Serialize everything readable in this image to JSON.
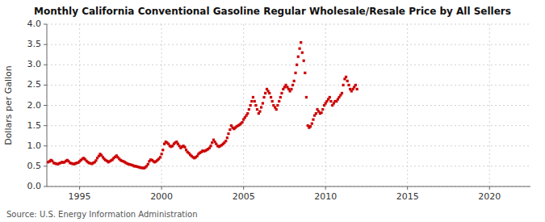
{
  "chart_data": {
    "type": "scatter",
    "title": "Monthly California Conventional Gasoline Regular Wholesale/Resale Price by All Sellers",
    "y_label": "Dollars per Gallon",
    "annotations": [
      "Source: U.S. Energy Information Administration"
    ],
    "color": "#CC0000",
    "marker": "square",
    "grid": true,
    "xlim": [
      1993.0,
      2022.5
    ],
    "ylim": [
      0.0,
      4.0
    ],
    "xticks": [
      1995,
      2000,
      2005,
      2010,
      2015,
      2020
    ],
    "yticks": [
      {
        "value": 0.0,
        "label": "0.0"
      },
      0.5,
      {
        "value": 1.0,
        "label": "1.0"
      },
      1.5,
      {
        "value": 2.0,
        "label": "2.0"
      },
      2.5,
      {
        "value": 3.0,
        "label": "3.0"
      },
      3.5,
      {
        "value": 4.0,
        "label": "4.0"
      }
    ],
    "x": [
      1993.08,
      1993.17,
      1993.25,
      1993.33,
      1993.42,
      1993.5,
      1993.58,
      1993.67,
      1993.75,
      1993.83,
      1993.92,
      1994.0,
      1994.08,
      1994.17,
      1994.25,
      1994.33,
      1994.42,
      1994.5,
      1994.58,
      1994.67,
      1994.75,
      1994.83,
      1994.92,
      1995.0,
      1995.08,
      1995.17,
      1995.25,
      1995.33,
      1995.42,
      1995.5,
      1995.58,
      1995.67,
      1995.75,
      1995.83,
      1995.92,
      1996.0,
      1996.08,
      1996.17,
      1996.25,
      1996.33,
      1996.42,
      1996.5,
      1996.58,
      1996.67,
      1996.75,
      1996.83,
      1996.92,
      1997.0,
      1997.08,
      1997.17,
      1997.25,
      1997.33,
      1997.42,
      1997.5,
      1997.58,
      1997.67,
      1997.75,
      1997.83,
      1997.92,
      1998.0,
      1998.08,
      1998.17,
      1998.25,
      1998.33,
      1998.42,
      1998.5,
      1998.58,
      1998.67,
      1998.75,
      1998.83,
      1998.92,
      1999.0,
      1999.08,
      1999.17,
      1999.25,
      1999.33,
      1999.42,
      1999.5,
      1999.58,
      1999.67,
      1999.75,
      1999.83,
      1999.92,
      2000.0,
      2000.08,
      2000.17,
      2000.25,
      2000.33,
      2000.42,
      2000.5,
      2000.58,
      2000.67,
      2000.75,
      2000.83,
      2000.92,
      2001.0,
      2001.08,
      2001.17,
      2001.25,
      2001.33,
      2001.42,
      2001.5,
      2001.58,
      2001.67,
      2001.75,
      2001.83,
      2001.92,
      2002.0,
      2002.08,
      2002.17,
      2002.25,
      2002.33,
      2002.42,
      2002.5,
      2002.58,
      2002.67,
      2002.75,
      2002.83,
      2002.92,
      2003.0,
      2003.08,
      2003.17,
      2003.25,
      2003.33,
      2003.42,
      2003.5,
      2003.58,
      2003.67,
      2003.75,
      2003.83,
      2003.92,
      2004.0,
      2004.08,
      2004.17,
      2004.25,
      2004.33,
      2004.42,
      2004.5,
      2004.58,
      2004.67,
      2004.75,
      2004.83,
      2004.92,
      2005.0,
      2005.08,
      2005.17,
      2005.25,
      2005.33,
      2005.42,
      2005.5,
      2005.58,
      2005.67,
      2005.75,
      2005.83,
      2005.92,
      2006.0,
      2006.08,
      2006.17,
      2006.25,
      2006.33,
      2006.42,
      2006.5,
      2006.58,
      2006.67,
      2006.75,
      2006.83,
      2006.92,
      2007.0,
      2007.08,
      2007.17,
      2007.25,
      2007.33,
      2007.42,
      2007.5,
      2007.58,
      2007.67,
      2007.75,
      2007.83,
      2007.92,
      2008.0,
      2008.08,
      2008.17,
      2008.25,
      2008.33,
      2008.42,
      2008.5,
      2008.58,
      2008.67,
      2008.75,
      2008.83,
      2008.92,
      2009.0,
      2009.08,
      2009.17,
      2009.25,
      2009.33,
      2009.42,
      2009.5,
      2009.58,
      2009.67,
      2009.75,
      2009.83,
      2009.92,
      2010.0,
      2010.08,
      2010.17,
      2010.25,
      2010.33,
      2010.42,
      2010.5,
      2010.58,
      2010.67,
      2010.75,
      2010.83,
      2010.92,
      2011.0,
      2011.08,
      2011.17,
      2011.25,
      2011.33,
      2011.42,
      2011.5,
      2011.58,
      2011.67,
      2011.75,
      2011.83,
      2011.92
    ],
    "values": [
      0.6,
      0.62,
      0.65,
      0.63,
      0.58,
      0.57,
      0.56,
      0.55,
      0.57,
      0.58,
      0.6,
      0.59,
      0.6,
      0.63,
      0.65,
      0.62,
      0.58,
      0.57,
      0.56,
      0.55,
      0.57,
      0.58,
      0.59,
      0.62,
      0.65,
      0.68,
      0.7,
      0.67,
      0.63,
      0.6,
      0.58,
      0.57,
      0.56,
      0.58,
      0.6,
      0.64,
      0.7,
      0.75,
      0.8,
      0.77,
      0.72,
      0.68,
      0.65,
      0.63,
      0.6,
      0.62,
      0.64,
      0.66,
      0.7,
      0.73,
      0.76,
      0.72,
      0.68,
      0.65,
      0.63,
      0.62,
      0.6,
      0.58,
      0.56,
      0.55,
      0.54,
      0.53,
      0.52,
      0.5,
      0.5,
      0.49,
      0.48,
      0.47,
      0.46,
      0.46,
      0.45,
      0.47,
      0.5,
      0.55,
      0.62,
      0.66,
      0.65,
      0.62,
      0.6,
      0.62,
      0.65,
      0.68,
      0.72,
      0.8,
      0.9,
      1.05,
      1.1,
      1.08,
      1.05,
      1.0,
      0.98,
      1.0,
      1.05,
      1.08,
      1.1,
      1.05,
      1.0,
      0.95,
      0.98,
      1.0,
      0.97,
      0.9,
      0.85,
      0.82,
      0.78,
      0.75,
      0.72,
      0.7,
      0.72,
      0.75,
      0.8,
      0.83,
      0.85,
      0.88,
      0.87,
      0.88,
      0.9,
      0.92,
      0.95,
      1.0,
      1.08,
      1.15,
      1.1,
      1.05,
      1.0,
      0.98,
      1.0,
      1.02,
      1.05,
      1.08,
      1.12,
      1.2,
      1.3,
      1.4,
      1.5,
      1.45,
      1.42,
      1.45,
      1.48,
      1.5,
      1.52,
      1.55,
      1.58,
      1.65,
      1.7,
      1.75,
      1.8,
      1.9,
      2.0,
      2.1,
      2.2,
      2.1,
      2.0,
      1.9,
      1.8,
      1.85,
      1.95,
      2.05,
      2.2,
      2.3,
      2.4,
      2.35,
      2.3,
      2.2,
      2.1,
      2.0,
      1.95,
      1.9,
      2.0,
      2.1,
      2.2,
      2.3,
      2.4,
      2.45,
      2.5,
      2.45,
      2.4,
      2.35,
      2.4,
      2.5,
      2.6,
      2.8,
      3.0,
      3.2,
      3.4,
      3.55,
      3.3,
      3.1,
      2.8,
      2.2,
      1.5,
      1.45,
      1.48,
      1.55,
      1.65,
      1.75,
      1.8,
      1.9,
      1.85,
      1.8,
      1.82,
      1.9,
      2.0,
      2.05,
      2.1,
      2.15,
      2.2,
      2.1,
      2.0,
      2.05,
      2.1,
      2.1,
      2.15,
      2.2,
      2.25,
      2.3,
      2.5,
      2.65,
      2.7,
      2.6,
      2.5,
      2.4,
      2.35,
      2.4,
      2.45,
      2.5,
      2.4
    ]
  }
}
